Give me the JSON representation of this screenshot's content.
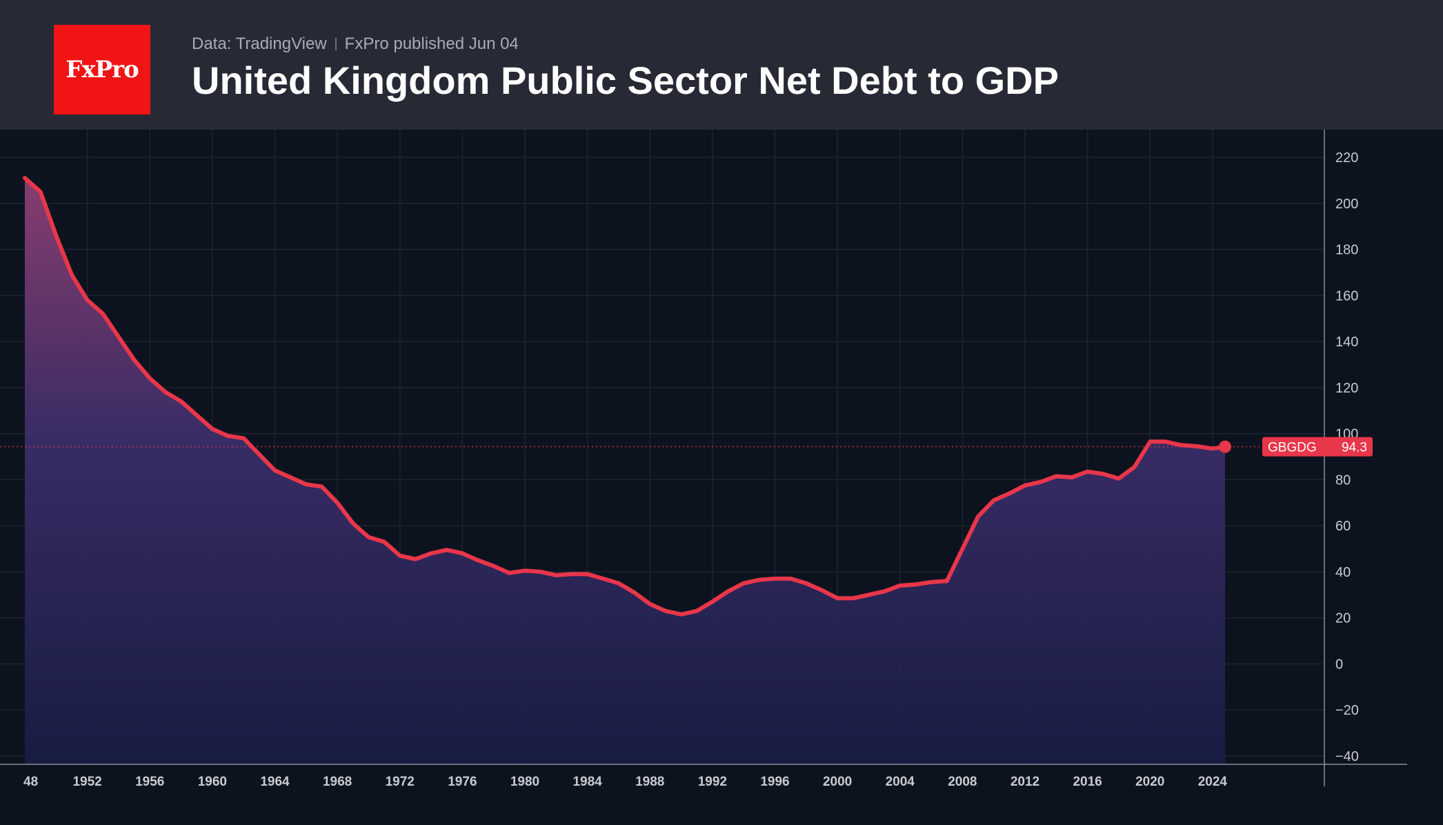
{
  "header": {
    "logo_text": "FxPro",
    "source": "Data: TradingView",
    "published": "FxPro published Jun 04",
    "title": "United Kingdom Public Sector Net Debt to GDP"
  },
  "colors": {
    "line": "#e8364a",
    "background": "#0d131e",
    "header": "#272a35",
    "logo": "#f01414"
  },
  "chart_data": {
    "type": "area",
    "ticker": "GBGDG",
    "last_value_label": "94.3",
    "x_ticks": [
      "48",
      "1952",
      "1956",
      "1960",
      "1964",
      "1968",
      "1972",
      "1976",
      "1980",
      "1984",
      "1988",
      "1992",
      "1996",
      "2000",
      "2004",
      "2008",
      "2012",
      "2016",
      "2020",
      "2024"
    ],
    "y_ticks": [
      220,
      200,
      180,
      160,
      140,
      120,
      100,
      80,
      60,
      40,
      20,
      0,
      -20,
      -40
    ],
    "y_axis_side": "right",
    "xlim": [
      1948,
      2024.8
    ],
    "ylim": [
      -40,
      220
    ],
    "grid": true,
    "x": [
      1948,
      1949,
      1950,
      1951,
      1952,
      1953,
      1954,
      1955,
      1956,
      1957,
      1958,
      1959,
      1960,
      1961,
      1962,
      1963,
      1964,
      1965,
      1966,
      1967,
      1968,
      1969,
      1970,
      1971,
      1972,
      1973,
      1974,
      1975,
      1976,
      1977,
      1978,
      1979,
      1980,
      1981,
      1982,
      1983,
      1984,
      1985,
      1986,
      1987,
      1988,
      1989,
      1990,
      1991,
      1992,
      1993,
      1994,
      1995,
      1996,
      1997,
      1998,
      1999,
      2000,
      2001,
      2002,
      2003,
      2004,
      2005,
      2006,
      2007,
      2008,
      2009,
      2010,
      2011,
      2012,
      2013,
      2014,
      2015,
      2016,
      2017,
      2018,
      2019,
      2020,
      2021,
      2022,
      2023,
      2024,
      2024.8
    ],
    "series": [
      {
        "values": [
          211,
          205,
          186,
          169,
          158,
          152,
          142,
          132,
          124,
          118,
          114,
          108,
          102,
          99,
          98,
          91,
          84,
          81,
          78,
          77,
          70,
          61,
          55,
          53,
          47,
          45.5,
          48,
          49.5,
          48,
          45,
          42.5,
          39.5,
          40.5,
          40,
          38.5,
          39,
          39,
          37,
          35,
          31,
          26,
          23,
          21.5,
          23,
          27,
          31.5,
          35,
          36.5,
          37,
          37,
          35,
          32,
          28.5,
          28.5,
          30,
          31.5,
          34,
          34.5,
          35.5,
          36,
          50,
          64,
          71,
          74,
          77.5,
          79,
          81.5,
          81,
          83.5,
          82.5,
          80.5,
          85.5,
          96.5,
          96.5,
          95,
          94.5,
          93.5,
          94.3
        ]
      }
    ]
  }
}
